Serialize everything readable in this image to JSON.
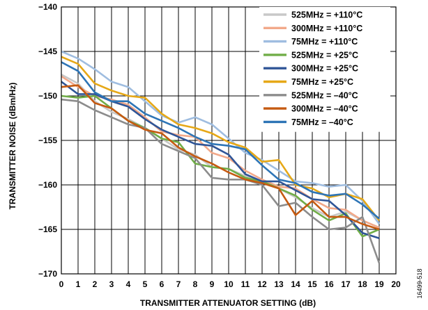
{
  "figure_id": "16499-518",
  "chart_data": {
    "type": "line",
    "title": "",
    "xlabel": "TRANSMITTER ATTENUATOR SETTING (dB)",
    "ylabel": "TRANSMITTER NOISE (dBm/Hz)",
    "xlim": [
      0,
      20
    ],
    "ylim": [
      -170,
      -140
    ],
    "x_ticks": [
      0,
      1,
      2,
      3,
      4,
      5,
      6,
      7,
      8,
      9,
      10,
      11,
      12,
      13,
      14,
      15,
      16,
      17,
      18,
      19,
      20
    ],
    "y_ticks": [
      -140,
      -145,
      -150,
      -155,
      -160,
      -165,
      -170
    ],
    "y_tick_labels": [
      "−140",
      "−145",
      "−150",
      "−155",
      "−160",
      "−165",
      "−170"
    ],
    "grid": true,
    "legend_position": "top-right",
    "x": [
      0,
      1,
      2,
      3,
      4,
      5,
      6,
      7,
      8,
      9,
      10,
      11,
      12,
      13,
      14,
      15,
      16,
      17,
      18,
      19
    ],
    "series": [
      {
        "name": "525MHz = +110°C",
        "color": "#c8c8c8",
        "values": [
          -147.6,
          -148.6,
          -150.6,
          -151.8,
          -152.6,
          -153.6,
          -154.8,
          -156.0,
          -156.6,
          -158.0,
          -158.2,
          -159.0,
          -159.6,
          -160.4,
          -161.4,
          -162.6,
          -163.6,
          -163.0,
          -164.0,
          -164.8
        ]
      },
      {
        "name": "300MHz = +110°C",
        "color": "#f2a98a",
        "values": [
          -147.8,
          -149.0,
          -150.0,
          -150.4,
          -151.0,
          -152.4,
          -154.0,
          -154.4,
          -154.6,
          -156.4,
          -157.0,
          -158.4,
          -159.4,
          -160.2,
          -160.4,
          -161.6,
          -162.6,
          -162.8,
          -164.0,
          -164.8
        ]
      },
      {
        "name": "75MHz = +110°C",
        "color": "#9fbde0",
        "values": [
          -145.0,
          -145.8,
          -147.0,
          -148.4,
          -149.0,
          -150.6,
          -152.2,
          -153.0,
          -152.4,
          -153.2,
          -154.8,
          -156.4,
          -157.2,
          -158.4,
          -159.6,
          -159.8,
          -160.2,
          -160.0,
          -161.8,
          -164.4
        ]
      },
      {
        "name": "525MHz = +25°C",
        "color": "#70ad47",
        "values": [
          -150.0,
          -150.2,
          -150.0,
          -151.4,
          -152.8,
          -153.6,
          -154.8,
          -155.2,
          -157.6,
          -158.0,
          -158.2,
          -159.2,
          -159.6,
          -160.4,
          -161.2,
          -162.8,
          -164.0,
          -163.2,
          -165.8,
          -165.0
        ]
      },
      {
        "name": "300MHz = +25°C",
        "color": "#2f5597",
        "values": [
          -148.4,
          -149.8,
          -149.8,
          -150.6,
          -151.2,
          -152.6,
          -153.8,
          -154.6,
          -155.4,
          -155.6,
          -156.6,
          -158.8,
          -159.6,
          -159.6,
          -160.6,
          -161.6,
          -161.8,
          -163.4,
          -165.4,
          -166.0
        ]
      },
      {
        "name": "75MHz = +25°C",
        "color": "#e6a817",
        "values": [
          -145.6,
          -146.4,
          -148.6,
          -149.4,
          -150.0,
          -150.2,
          -152.0,
          -153.2,
          -153.6,
          -154.2,
          -155.2,
          -155.8,
          -157.4,
          -157.2,
          -160.0,
          -160.4,
          -161.4,
          -161.0,
          -161.6,
          -164.0
        ]
      },
      {
        "name": "525MHz = –40°C",
        "color": "#8c8c8c",
        "values": [
          -150.4,
          -150.6,
          -151.6,
          -152.4,
          -153.2,
          -153.6,
          -155.4,
          -156.2,
          -157.0,
          -159.2,
          -159.4,
          -159.4,
          -160.0,
          -162.4,
          -162.0,
          -163.6,
          -165.0,
          -164.8,
          -163.6,
          -168.8
        ]
      },
      {
        "name": "300MHz = –40°C",
        "color": "#c55a11",
        "values": [
          -149.0,
          -148.8,
          -150.8,
          -151.4,
          -152.8,
          -153.8,
          -154.2,
          -155.8,
          -156.8,
          -157.6,
          -158.6,
          -159.4,
          -159.8,
          -160.4,
          -163.4,
          -161.8,
          -163.6,
          -163.6,
          -164.4,
          -165.0
        ]
      },
      {
        "name": "75MHz = –40°C",
        "color": "#2e75b6",
        "values": [
          -146.2,
          -147.2,
          -149.6,
          -150.6,
          -150.6,
          -152.0,
          -152.8,
          -153.6,
          -154.6,
          -155.4,
          -155.6,
          -156.0,
          -157.8,
          -159.4,
          -159.8,
          -160.8,
          -161.2,
          -161.0,
          -162.2,
          -163.8
        ]
      }
    ]
  }
}
